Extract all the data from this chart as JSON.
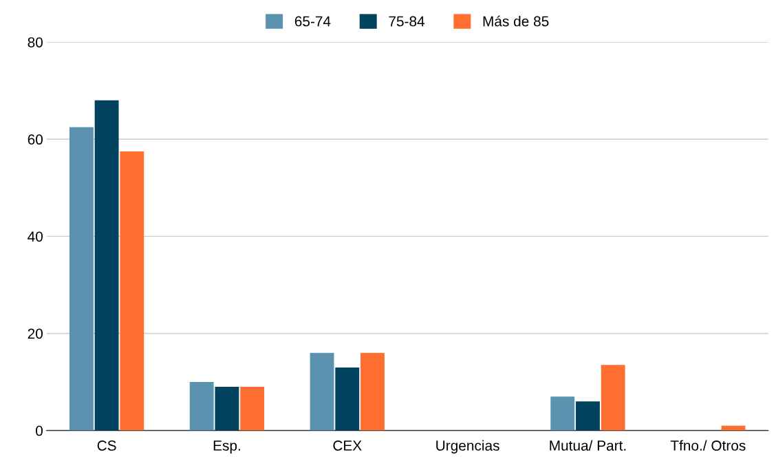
{
  "chart_data": {
    "type": "bar",
    "categories": [
      "CS",
      "Esp.",
      "CEX",
      "Urgencias",
      "Mutua/ Part.",
      "Tfno./ Otros"
    ],
    "series": [
      {
        "name": "65-74",
        "color": "#5b92b0",
        "values": [
          62.5,
          10,
          16,
          0,
          7,
          0
        ]
      },
      {
        "name": "75-84",
        "color": "#01425e",
        "values": [
          68,
          9,
          13,
          0,
          6,
          0
        ]
      },
      {
        "name": "Más de 85",
        "color": "#ff6f31",
        "values": [
          57.5,
          9,
          16,
          0,
          13.5,
          1
        ]
      }
    ],
    "ylim": [
      0,
      80
    ],
    "yticks": [
      0,
      20,
      40,
      60,
      80
    ],
    "grid": "y",
    "legend": "top"
  }
}
